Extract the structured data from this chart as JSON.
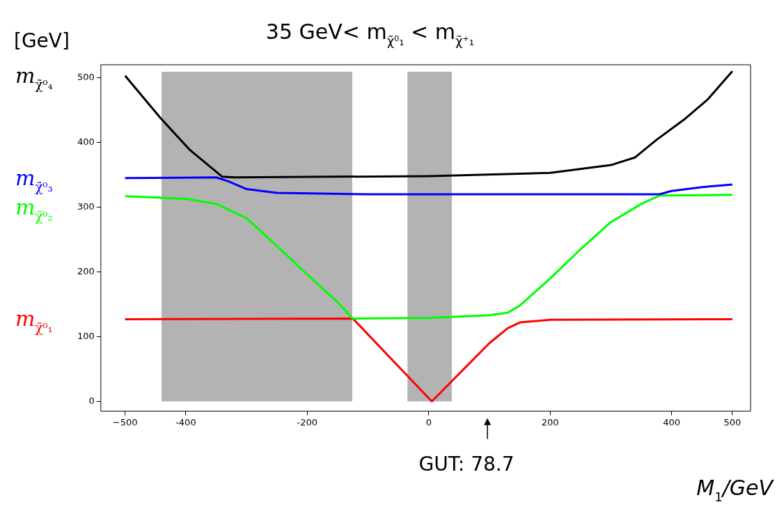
{
  "chart_data": {
    "type": "line",
    "title": "35 GeV< m$_{χ̃⁰₁}$ < m$_{χ̃⁺₁}$",
    "xlabel": "M$_{1}$/GeV",
    "ylabel": "[GeV]",
    "xlim": [
      -540,
      530
    ],
    "xticks": [
      {
        "value": -500,
        "label": "−500"
      },
      -400,
      -200,
      0,
      200,
      400,
      500
    ],
    "ylim": [
      -15,
      520
    ],
    "yticks": [
      0,
      100,
      200,
      300,
      400,
      500
    ],
    "grid": false,
    "bands": [
      {
        "axis": "x",
        "from": -440,
        "to": -126,
        "color": "#b3b3b3"
      },
      {
        "axis": "x",
        "from": -35,
        "to": 38,
        "color": "#b3b3b3"
      }
    ],
    "annotations": [
      "GUT: 78.7"
    ],
    "series": [
      {
        "name": "m$_{χ̃⁰₄}$",
        "color": "#000000",
        "x": [
          -500,
          -442,
          -394,
          -340,
          -320,
          0,
          200,
          300,
          340,
          375,
          420,
          460,
          500
        ],
        "values": [
          503,
          438,
          389,
          347,
          346,
          348,
          353,
          365,
          377,
          404,
          435,
          467,
          510
        ]
      },
      {
        "name": "m$_{χ̃⁰₃}$",
        "color": "#0000ff",
        "x": [
          -500,
          -350,
          -330,
          -300,
          -250,
          -100,
          0,
          380,
          400,
          450,
          500
        ],
        "values": [
          345,
          346,
          340,
          328,
          322,
          320,
          320,
          320,
          325,
          331,
          335
        ]
      },
      {
        "name": "m$_{χ̃⁰₂}$",
        "color": "#00ff00",
        "x": [
          -500,
          -400,
          -350,
          -300,
          -250,
          -200,
          -150,
          -125,
          0,
          100,
          130,
          150,
          200,
          250,
          300,
          350,
          380,
          500
        ],
        "values": [
          317,
          313,
          305,
          283,
          240,
          196,
          153,
          128,
          129,
          133,
          137,
          148,
          190,
          235,
          277,
          305,
          318,
          319
        ]
      },
      {
        "name": "m$_{χ̃⁰₁}$",
        "color": "#ff0000",
        "x": [
          -500,
          -125,
          5,
          100,
          130,
          150,
          200,
          500
        ],
        "values": [
          127,
          128,
          0,
          90,
          113,
          122,
          126,
          127
        ]
      }
    ]
  }
}
